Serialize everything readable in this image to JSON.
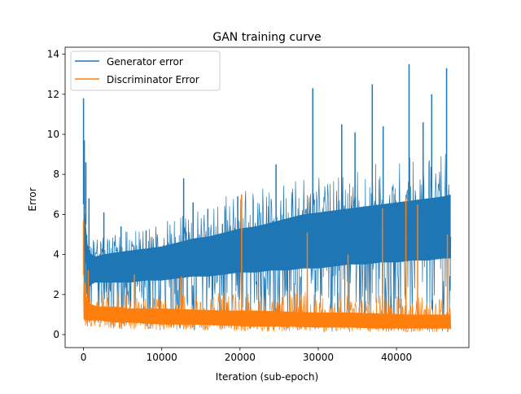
{
  "chart_data": {
    "type": "line",
    "title": "GAN training curve",
    "xlabel": "Iteration (sub-epoch)",
    "ylabel": "Error",
    "xlim": [
      -2350,
      49250
    ],
    "ylim": [
      -0.65,
      14.35
    ],
    "x_ticks": [
      0,
      10000,
      20000,
      30000,
      40000
    ],
    "x_tick_labels": [
      "0",
      "10000",
      "20000",
      "30000",
      "40000"
    ],
    "y_ticks": [
      0,
      2,
      4,
      6,
      8,
      10,
      12,
      14
    ],
    "y_tick_labels": [
      "0",
      "2",
      "4",
      "6",
      "8",
      "10",
      "12",
      "14"
    ],
    "grid": false,
    "legend_position": "top-left",
    "x_max": 47000,
    "series": [
      {
        "name": "Generator error",
        "color": "#1f77b4",
        "envelope": {
          "x": [
            0,
            200,
            500,
            1000,
            1500,
            2500,
            4000,
            6000,
            8000,
            10000,
            12000,
            14000,
            16000,
            18000,
            20000,
            22000,
            24000,
            26000,
            28000,
            30000,
            32000,
            34000,
            36000,
            38000,
            40000,
            42000,
            44000,
            46000,
            47000
          ],
          "low": [
            0.1,
            0.1,
            0.2,
            0.3,
            0.3,
            0.3,
            0.3,
            0.25,
            0.2,
            0.2,
            0.2,
            0.2,
            0.2,
            0.2,
            0.2,
            0.2,
            0.2,
            0.15,
            0.15,
            0.15,
            0.15,
            0.1,
            0.1,
            0.1,
            0.1,
            0.1,
            0.1,
            0.1,
            0.1
          ],
          "band_low": [
            1.0,
            1.5,
            2.2,
            2.5,
            2.6,
            2.6,
            2.6,
            2.6,
            2.7,
            2.7,
            2.8,
            2.9,
            2.9,
            3.0,
            3.1,
            3.1,
            3.2,
            3.2,
            3.3,
            3.3,
            3.4,
            3.5,
            3.5,
            3.6,
            3.6,
            3.7,
            3.7,
            3.8,
            3.8
          ],
          "band_high": [
            6.5,
            6.0,
            4.5,
            4.0,
            3.9,
            4.0,
            4.1,
            4.2,
            4.3,
            4.4,
            4.6,
            4.8,
            4.9,
            5.1,
            5.3,
            5.4,
            5.6,
            5.8,
            6.0,
            6.1,
            6.2,
            6.3,
            6.4,
            6.5,
            6.6,
            6.7,
            6.8,
            6.9,
            7.0
          ],
          "high": [
            9.8,
            9.0,
            5.8,
            5.0,
            4.8,
            4.9,
            5.1,
            5.2,
            5.4,
            5.6,
            5.9,
            6.2,
            6.6,
            6.9,
            7.2,
            7.4,
            7.6,
            7.8,
            8.0,
            8.1,
            8.2,
            8.4,
            8.5,
            8.7,
            8.9,
            9.0,
            9.2,
            9.3,
            9.4
          ]
        },
        "spikes": [
          {
            "x": 0,
            "y": 11.8
          },
          {
            "x": 100,
            "y": 9.7
          },
          {
            "x": 300,
            "y": 8.6
          },
          {
            "x": 700,
            "y": 6.8
          },
          {
            "x": 2600,
            "y": 6.1
          },
          {
            "x": 4800,
            "y": 5.4
          },
          {
            "x": 8000,
            "y": 5.2
          },
          {
            "x": 12800,
            "y": 7.8
          },
          {
            "x": 14000,
            "y": 6.6
          },
          {
            "x": 19700,
            "y": 6.9
          },
          {
            "x": 24600,
            "y": 8.5
          },
          {
            "x": 29300,
            "y": 12.3
          },
          {
            "x": 33000,
            "y": 10.5
          },
          {
            "x": 34700,
            "y": 10.1
          },
          {
            "x": 36900,
            "y": 12.5
          },
          {
            "x": 38300,
            "y": 10.4
          },
          {
            "x": 41600,
            "y": 13.5
          },
          {
            "x": 43400,
            "y": 10.6
          },
          {
            "x": 44500,
            "y": 12.0
          },
          {
            "x": 46400,
            "y": 13.3
          }
        ]
      },
      {
        "name": "Discriminator Error",
        "color": "#ff7f0e",
        "envelope": {
          "x": [
            0,
            200,
            500,
            1000,
            2000,
            4000,
            6000,
            8000,
            10000,
            14000,
            18000,
            22000,
            26000,
            30000,
            34000,
            38000,
            42000,
            46000,
            47000
          ],
          "low": [
            0.5,
            0.4,
            0.4,
            0.4,
            0.35,
            0.3,
            0.25,
            0.2,
            0.2,
            0.2,
            0.2,
            0.15,
            0.15,
            0.1,
            0.1,
            0.1,
            0.1,
            0.1,
            0.1
          ],
          "band_low": [
            0.8,
            0.7,
            0.7,
            0.7,
            0.7,
            0.6,
            0.6,
            0.55,
            0.5,
            0.5,
            0.45,
            0.4,
            0.4,
            0.35,
            0.35,
            0.3,
            0.3,
            0.3,
            0.3
          ],
          "band_high": [
            3.0,
            2.5,
            1.7,
            1.5,
            1.4,
            1.4,
            1.3,
            1.3,
            1.3,
            1.25,
            1.2,
            1.2,
            1.15,
            1.1,
            1.1,
            1.05,
            1.0,
            1.0,
            1.0
          ],
          "high": [
            5.7,
            4.5,
            3.0,
            2.5,
            2.4,
            2.2,
            2.0,
            1.9,
            1.9,
            2.0,
            2.1,
            2.1,
            2.2,
            2.2,
            2.1,
            2.0,
            1.9,
            1.8,
            1.8
          ]
        },
        "spikes": [
          {
            "x": 0,
            "y": 5.7
          },
          {
            "x": 600,
            "y": 3.2
          },
          {
            "x": 6500,
            "y": 3.0
          },
          {
            "x": 12500,
            "y": 2.9
          },
          {
            "x": 20200,
            "y": 7.0
          },
          {
            "x": 28600,
            "y": 5.1
          },
          {
            "x": 33800,
            "y": 4.0
          },
          {
            "x": 38200,
            "y": 6.3
          },
          {
            "x": 41200,
            "y": 6.8
          },
          {
            "x": 42700,
            "y": 6.5
          },
          {
            "x": 46500,
            "y": 5.0
          }
        ]
      }
    ]
  }
}
